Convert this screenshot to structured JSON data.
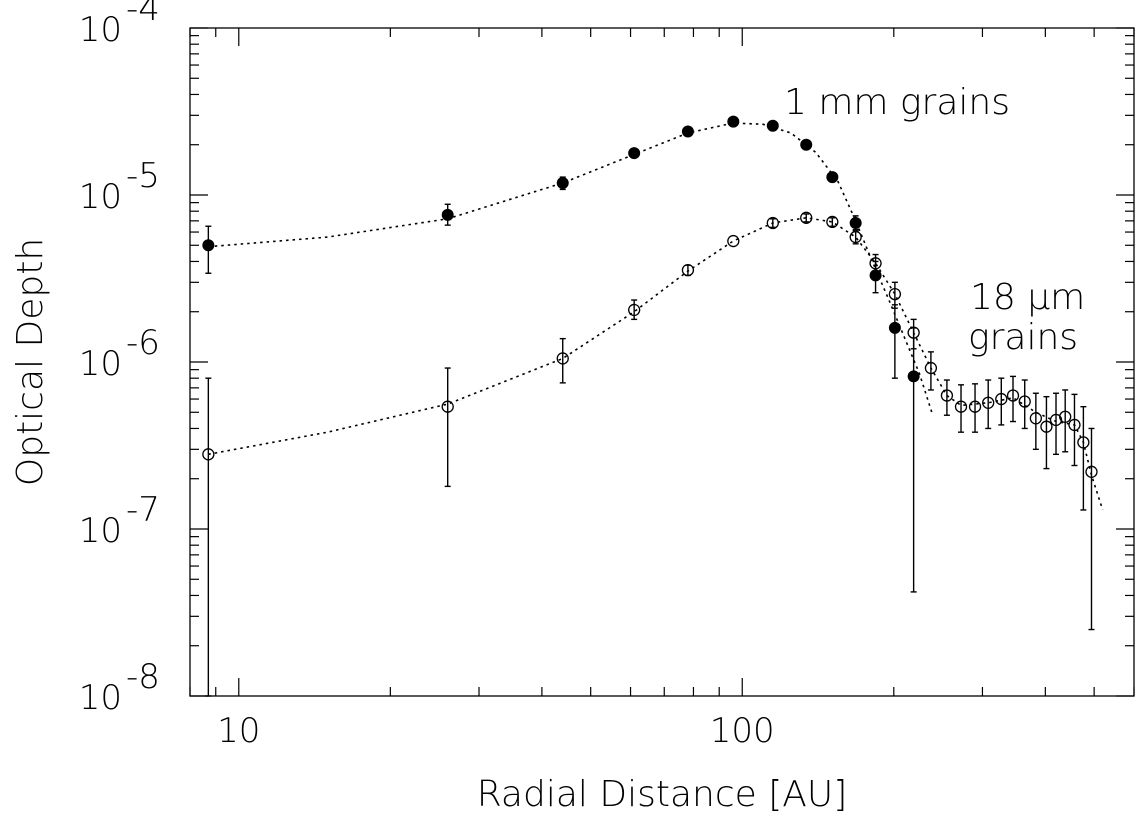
{
  "chart_data": {
    "type": "scatter",
    "title": "",
    "xlabel": "Radial Distance [AU]",
    "ylabel": "Optical Depth",
    "xscale": "log",
    "yscale": "log",
    "xlim": [
      8,
      600
    ],
    "ylim": [
      1e-08,
      0.0001
    ],
    "x_ticks": [
      {
        "value": 10,
        "label": "10"
      },
      {
        "value": 100,
        "label": "100"
      }
    ],
    "y_ticks": [
      {
        "value": 1e-08,
        "base": "10",
        "exp": "-8"
      },
      {
        "value": 1e-07,
        "base": "10",
        "exp": "-7"
      },
      {
        "value": 1e-06,
        "base": "10",
        "exp": "-6"
      },
      {
        "value": 1e-05,
        "base": "10",
        "exp": "-5"
      },
      {
        "value": 0.0001,
        "base": "10",
        "exp": "-4"
      }
    ],
    "grid": false,
    "annotations": [
      {
        "text": "1 mm grains",
        "near_series": "1mm"
      },
      {
        "text_lines": [
          "18 μm",
          "grains"
        ],
        "near_series": "18um"
      }
    ],
    "series": [
      {
        "id": "1mm",
        "marker": "filled-circle",
        "points": [
          {
            "x": 8.7,
            "y": 5e-06,
            "lo": 3.4e-06,
            "hi": 6.5e-06
          },
          {
            "x": 26,
            "y": 7.6e-06,
            "lo": 6.6e-06,
            "hi": 8.8e-06
          },
          {
            "x": 44,
            "y": 1.18e-05,
            "lo": 1.08e-05,
            "hi": 1.28e-05
          },
          {
            "x": 61,
            "y": 1.78e-05
          },
          {
            "x": 78,
            "y": 2.4e-05
          },
          {
            "x": 96,
            "y": 2.75e-05
          },
          {
            "x": 115,
            "y": 2.6e-05
          },
          {
            "x": 134,
            "y": 2e-05
          },
          {
            "x": 151,
            "y": 1.28e-05
          },
          {
            "x": 168,
            "y": 6.8e-06,
            "lo": 6.2e-06,
            "hi": 7.5e-06
          },
          {
            "x": 184,
            "y": 3.3e-06,
            "lo": 2.6e-06,
            "hi": 4e-06
          },
          {
            "x": 201,
            "y": 1.6e-06,
            "lo": 8e-07,
            "hi": 2.2e-06
          },
          {
            "x": 219,
            "y": 8.2e-07,
            "lo": 4.2e-08,
            "hi": 1.6e-06
          }
        ],
        "fit_curve": [
          [
            8.7,
            4.9e-06
          ],
          [
            15,
            5.6e-06
          ],
          [
            26,
            7.2e-06
          ],
          [
            44,
            1.18e-05
          ],
          [
            61,
            1.75e-05
          ],
          [
            78,
            2.35e-05
          ],
          [
            96,
            2.7e-05
          ],
          [
            110,
            2.65e-05
          ],
          [
            125,
            2.35e-05
          ],
          [
            140,
            1.8e-05
          ],
          [
            155,
            1.2e-05
          ],
          [
            168,
            7e-06
          ],
          [
            180,
            4.2e-06
          ],
          [
            195,
            2.4e-06
          ],
          [
            210,
            1.4e-06
          ],
          [
            225,
            8.5e-07
          ],
          [
            238,
            5e-07
          ]
        ]
      },
      {
        "id": "18um",
        "marker": "open-circle",
        "points": [
          {
            "x": 8.7,
            "y": 2.8e-07,
            "lo": 1e-08,
            "hi": 8e-07
          },
          {
            "x": 26,
            "y": 5.4e-07,
            "lo": 1.8e-07,
            "hi": 9.2e-07
          },
          {
            "x": 44,
            "y": 1.05e-06,
            "lo": 7.5e-07,
            "hi": 1.38e-06
          },
          {
            "x": 61,
            "y": 2.05e-06,
            "lo": 1.8e-06,
            "hi": 2.35e-06
          },
          {
            "x": 78,
            "y": 3.55e-06,
            "lo": 3.3e-06,
            "hi": 3.8e-06
          },
          {
            "x": 96,
            "y": 5.3e-06
          },
          {
            "x": 115,
            "y": 6.8e-06,
            "lo": 6.4e-06,
            "hi": 7.2e-06
          },
          {
            "x": 134,
            "y": 7.3e-06,
            "lo": 6.9e-06,
            "hi": 7.7e-06
          },
          {
            "x": 151,
            "y": 6.9e-06,
            "lo": 6.5e-06,
            "hi": 7.3e-06
          },
          {
            "x": 168,
            "y": 5.6e-06,
            "lo": 5.1e-06,
            "hi": 6.1e-06
          },
          {
            "x": 184,
            "y": 3.9e-06,
            "lo": 3.4e-06,
            "hi": 4.4e-06
          },
          {
            "x": 201,
            "y": 2.55e-06,
            "lo": 2.1e-06,
            "hi": 3e-06
          },
          {
            "x": 219,
            "y": 1.5e-06,
            "lo": 1.2e-06,
            "hi": 1.8e-06
          },
          {
            "x": 237,
            "y": 9.2e-07,
            "lo": 6.8e-07,
            "hi": 1.15e-06
          },
          {
            "x": 255,
            "y": 6.3e-07,
            "lo": 4.8e-07,
            "hi": 7.8e-07
          },
          {
            "x": 272,
            "y": 5.4e-07,
            "lo": 3.8e-07,
            "hi": 7.3e-07
          },
          {
            "x": 290,
            "y": 5.4e-07,
            "lo": 3.8e-07,
            "hi": 7.4e-07
          },
          {
            "x": 308,
            "y": 5.7e-07,
            "lo": 4e-07,
            "hi": 7.8e-07
          },
          {
            "x": 327,
            "y": 6e-07,
            "lo": 4.2e-07,
            "hi": 8e-07
          },
          {
            "x": 345,
            "y": 6.3e-07,
            "lo": 4.4e-07,
            "hi": 8.2e-07
          },
          {
            "x": 364,
            "y": 5.8e-07,
            "lo": 4e-07,
            "hi": 7.8e-07
          },
          {
            "x": 383,
            "y": 4.6e-07,
            "lo": 3e-07,
            "hi": 6.5e-07
          },
          {
            "x": 402,
            "y": 4.1e-07,
            "lo": 2.3e-07,
            "hi": 6.2e-07
          },
          {
            "x": 420,
            "y": 4.5e-07,
            "lo": 2.8e-07,
            "hi": 6.5e-07
          },
          {
            "x": 438,
            "y": 4.7e-07,
            "lo": 2.9e-07,
            "hi": 6.8e-07
          },
          {
            "x": 457,
            "y": 4.2e-07,
            "lo": 2.4e-07,
            "hi": 6.4e-07
          },
          {
            "x": 476,
            "y": 3.3e-07,
            "lo": 1.3e-07,
            "hi": 5.4e-07
          },
          {
            "x": 494,
            "y": 2.2e-07,
            "lo": 2.5e-08,
            "hi": 4e-07
          }
        ],
        "fit_curve": [
          [
            8.7,
            2.8e-07
          ],
          [
            15,
            3.8e-07
          ],
          [
            26,
            5.6e-07
          ],
          [
            44,
            1.05e-06
          ],
          [
            61,
            2e-06
          ],
          [
            78,
            3.5e-06
          ],
          [
            96,
            5.3e-06
          ],
          [
            115,
            6.8e-06
          ],
          [
            134,
            7.3e-06
          ],
          [
            151,
            6.9e-06
          ],
          [
            168,
            5.6e-06
          ],
          [
            184,
            3.9e-06
          ],
          [
            201,
            2.55e-06
          ],
          [
            219,
            1.5e-06
          ],
          [
            237,
            9.2e-07
          ],
          [
            255,
            6.3e-07
          ],
          [
            272,
            5.5e-07
          ],
          [
            308,
            5.7e-07
          ],
          [
            345,
            6.1e-07
          ],
          [
            383,
            5e-07
          ],
          [
            420,
            4.4e-07
          ],
          [
            457,
            4.2e-07
          ],
          [
            476,
            3.3e-07
          ],
          [
            494,
            2.1e-07
          ],
          [
            520,
            1.3e-07
          ]
        ]
      }
    ]
  }
}
